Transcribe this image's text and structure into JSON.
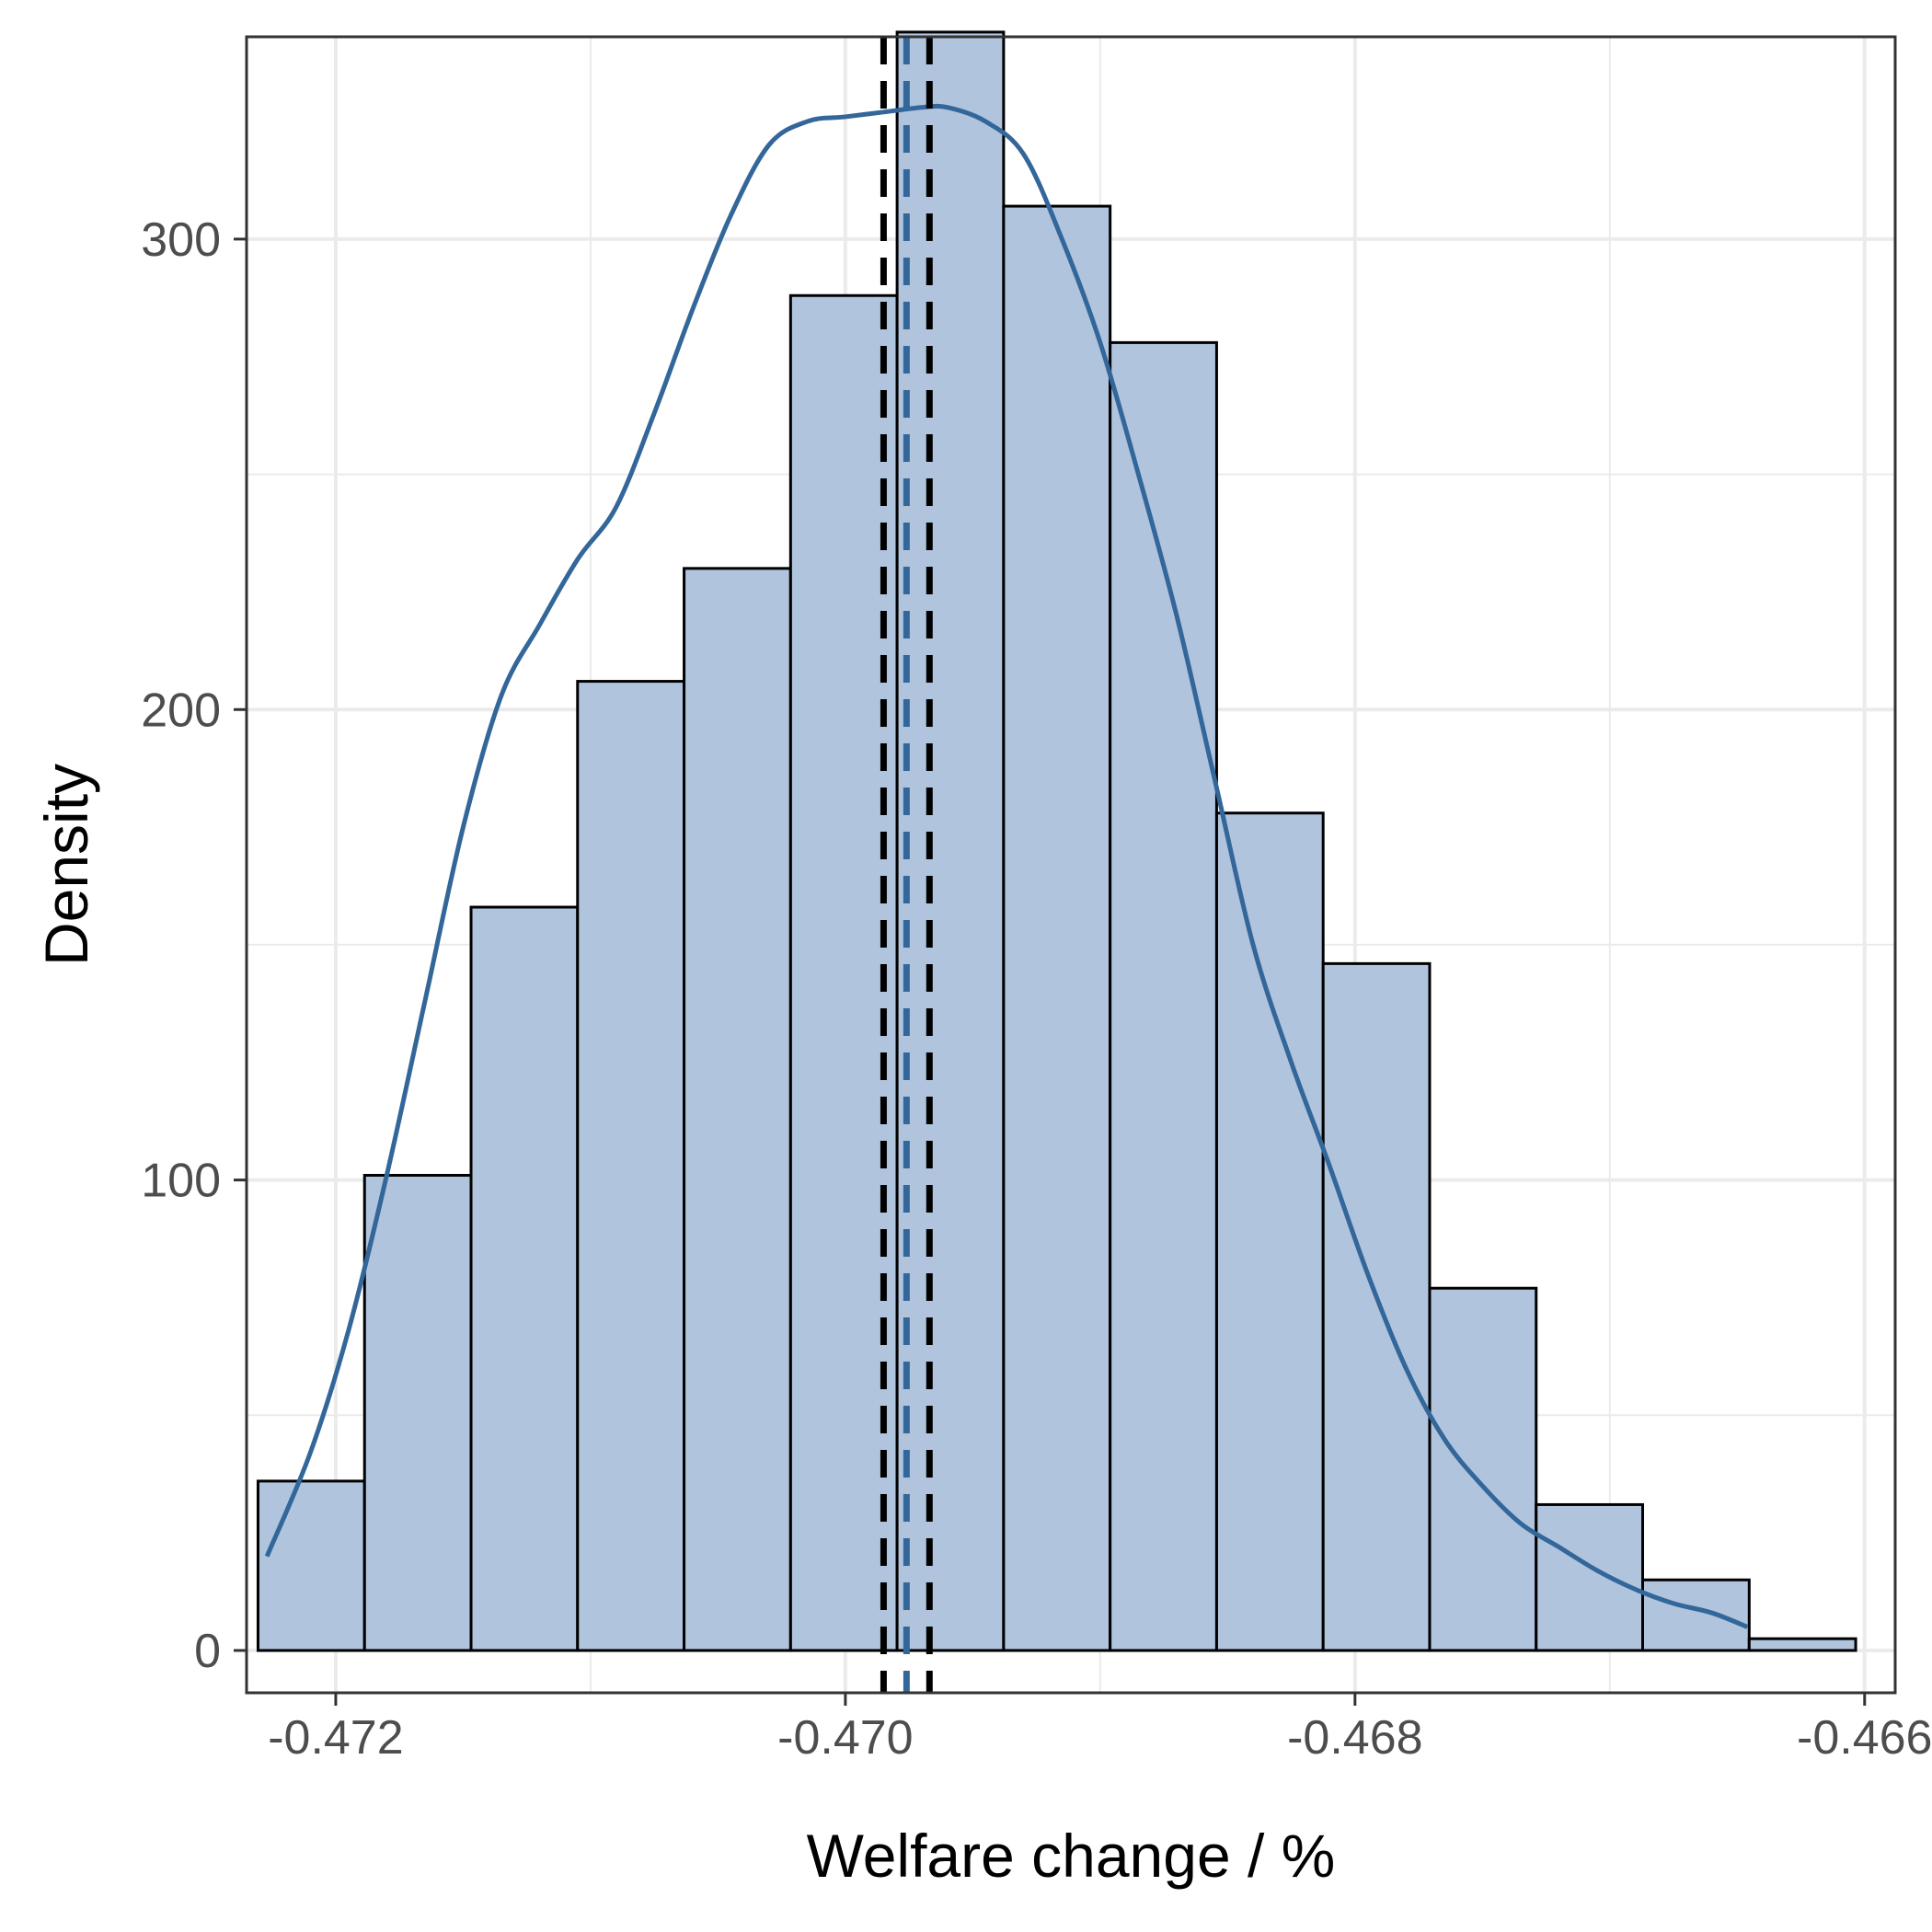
{
  "chart_data": {
    "type": "bar",
    "subtype": "histogram",
    "title": "",
    "xlabel": "Welfare change / %",
    "ylabel": "Density",
    "xlim": [
      -0.47235,
      -0.46588
    ],
    "ylim": [
      -9,
      343
    ],
    "x_ticks": [
      {
        "value": -0.472,
        "label": "-0.472"
      },
      {
        "value": -0.47,
        "label": "-0.470"
      },
      {
        "value": -0.468,
        "label": "-0.468"
      },
      {
        "value": -0.466,
        "label": "-0.466"
      }
    ],
    "y_ticks": [
      {
        "value": 0,
        "label": "0"
      },
      {
        "value": 100,
        "label": "100"
      },
      {
        "value": 200,
        "label": "200"
      },
      {
        "value": 300,
        "label": "300"
      }
    ],
    "grid": true,
    "bins": {
      "start": -0.472305,
      "width": 0.000418,
      "values": [
        36,
        101,
        158,
        206,
        230,
        288,
        344,
        307,
        278,
        178,
        146,
        77,
        31,
        15,
        2.5
      ]
    },
    "density_curve": {
      "x": [
        -0.47227,
        -0.4721,
        -0.47195,
        -0.4718,
        -0.47165,
        -0.4715,
        -0.47135,
        -0.4712,
        -0.47105,
        -0.4709,
        -0.47075,
        -0.4706,
        -0.47045,
        -0.4703,
        -0.47015,
        -0.47,
        -0.46985,
        -0.4697,
        -0.4696,
        -0.46945,
        -0.4693,
        -0.46915,
        -0.469,
        -0.46885,
        -0.4687,
        -0.46855,
        -0.4684,
        -0.46825,
        -0.4681,
        -0.46795,
        -0.4678,
        -0.46765,
        -0.4675,
        -0.46735,
        -0.4672,
        -0.46705,
        -0.4669,
        -0.46675,
        -0.4666,
        -0.46646
      ],
      "y": [
        20,
        42,
        68,
        101,
        138,
        175,
        203,
        218,
        232,
        243,
        263,
        285,
        305,
        320,
        325,
        326,
        327,
        328,
        328,
        325,
        318,
        300,
        278,
        250,
        220,
        185,
        150,
        125,
        103,
        80,
        60,
        45,
        35,
        27,
        22,
        17,
        13,
        10,
        8,
        5
      ]
    },
    "vlines": [
      {
        "x": -0.46985,
        "color": "#000000",
        "style": "dashed"
      },
      {
        "x": -0.46976,
        "color": "#336699",
        "style": "dashed"
      },
      {
        "x": -0.46967,
        "color": "#000000",
        "style": "dashed"
      }
    ],
    "colors": {
      "bar_fill": "#b0c4de",
      "bar_stroke": "#000000",
      "curve": "#336699",
      "grid": "#ebebeb",
      "panel_border": "#333333"
    }
  }
}
